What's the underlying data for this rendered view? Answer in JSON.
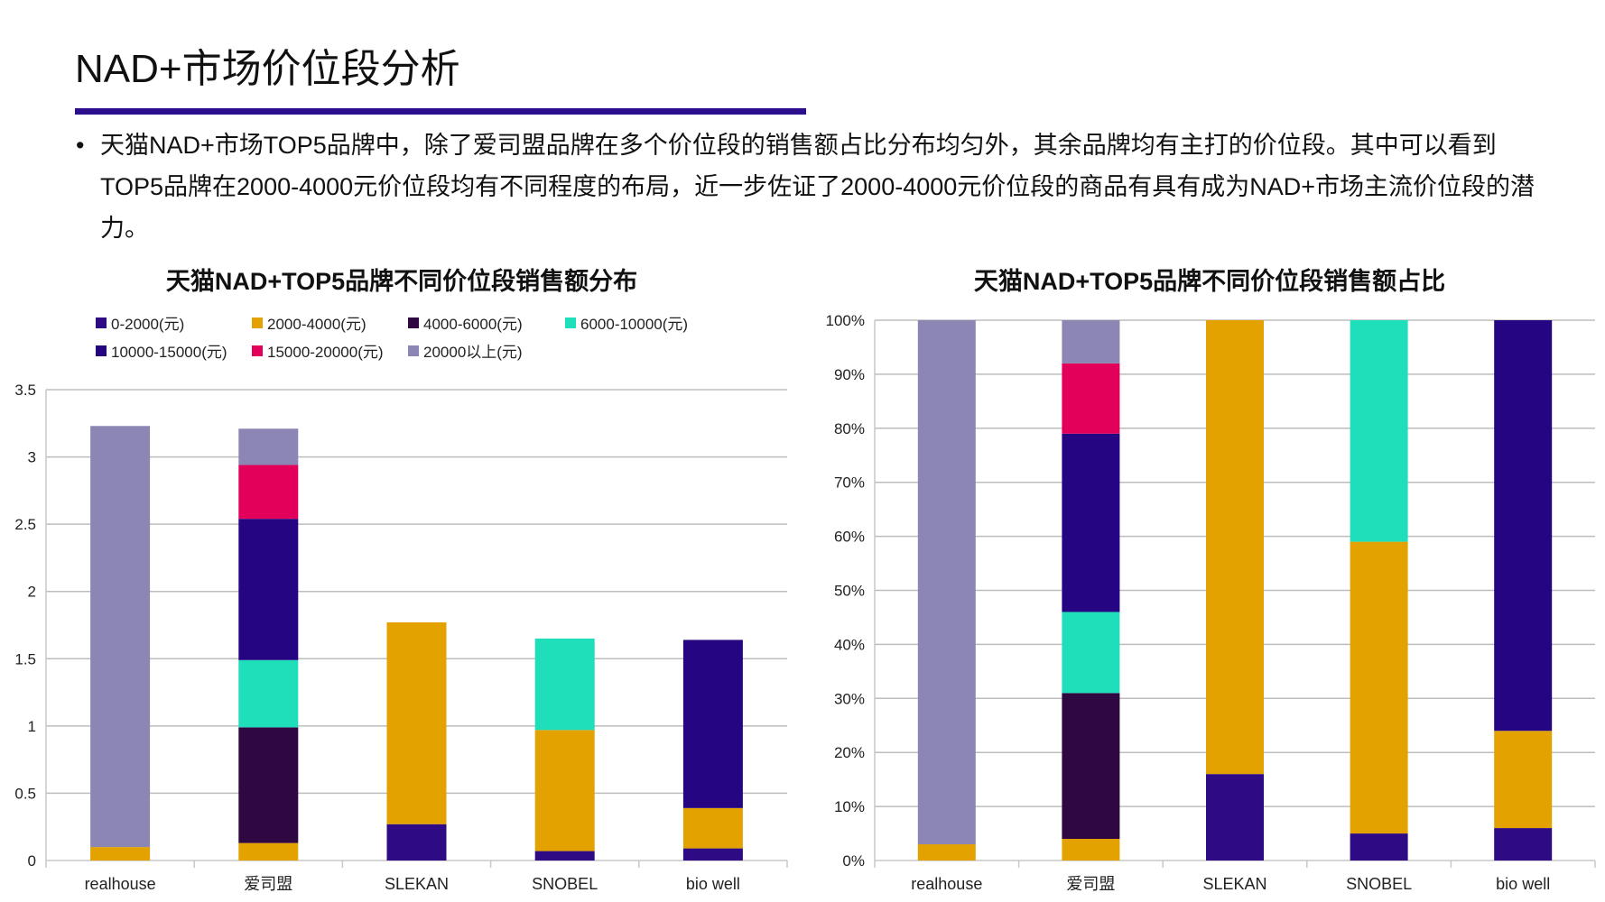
{
  "page": {
    "title": "NAD+市场价位段分析",
    "accent_color": "#2c0f8f",
    "bullet_icon": "bullet-dot",
    "bullet_text": "天猫NAD+市场TOP5品牌中，除了爱司盟品牌在多个价位段的销售额占比分布均匀外，其余品牌均有主打的价位段。其中可以看到TOP5品牌在2000-4000元价位段均有不同程度的布局，近一步佐证了2000-4000元价位段的商品有具有成为NAD+市场主流价位段的潜力。"
  },
  "chart_data": [
    {
      "type": "bar",
      "stacked": true,
      "title": "天猫NAD+TOP5品牌不同价位段销售额分布",
      "categories": [
        "realhouse",
        "爱司盟",
        "SLEKAN",
        "SNOBEL",
        "bio well"
      ],
      "ylim": [
        0,
        3.5
      ],
      "yticks": [
        "0",
        "0.5",
        "1",
        "1.5",
        "2",
        "2.5",
        "3",
        "3.5"
      ],
      "grid": true,
      "legend": "top",
      "series": [
        {
          "name": "0-2000(元)",
          "color": "#2e0a85",
          "values": [
            0,
            0,
            0.27,
            0.07,
            0.09
          ]
        },
        {
          "name": "2000-4000(元)",
          "color": "#e3a200",
          "values": [
            0.1,
            0.13,
            1.5,
            0.9,
            0.3
          ]
        },
        {
          "name": "4000-6000(元)",
          "color": "#2f0842",
          "values": [
            0,
            0.86,
            0,
            0,
            0
          ]
        },
        {
          "name": "6000-10000(元)",
          "color": "#1fdfbb",
          "values": [
            0,
            0.5,
            0,
            0.68,
            0
          ]
        },
        {
          "name": "10000-15000(元)",
          "color": "#260582",
          "values": [
            0,
            1.05,
            0,
            0,
            1.25
          ]
        },
        {
          "name": "15000-20000(元)",
          "color": "#e2005a",
          "values": [
            0,
            0.4,
            0,
            0,
            0
          ]
        },
        {
          "name": "20000以上(元)",
          "color": "#8c86b4",
          "values": [
            3.13,
            0.27,
            0,
            0,
            0
          ]
        }
      ]
    },
    {
      "type": "bar",
      "stacked": true,
      "percent": true,
      "title": "天猫NAD+TOP5品牌不同价位段销售额占比",
      "categories": [
        "realhouse",
        "爱司盟",
        "SLEKAN",
        "SNOBEL",
        "bio well"
      ],
      "ylim": [
        0,
        100
      ],
      "yticks": [
        "0%",
        "10%",
        "20%",
        "30%",
        "40%",
        "50%",
        "60%",
        "70%",
        "80%",
        "90%",
        "100%"
      ],
      "grid": true,
      "series": [
        {
          "name": "0-2000(元)",
          "color": "#2e0a85",
          "values": [
            0,
            0,
            16,
            5,
            6
          ]
        },
        {
          "name": "2000-4000(元)",
          "color": "#e3a200",
          "values": [
            3,
            4,
            84,
            54,
            18
          ]
        },
        {
          "name": "4000-6000(元)",
          "color": "#2f0842",
          "values": [
            0,
            27,
            0,
            0,
            0
          ]
        },
        {
          "name": "6000-10000(元)",
          "color": "#1fdfbb",
          "values": [
            0,
            15,
            0,
            41,
            0
          ]
        },
        {
          "name": "10000-15000(元)",
          "color": "#260582",
          "values": [
            0,
            33,
            0,
            0,
            76
          ]
        },
        {
          "name": "15000-20000(元)",
          "color": "#e2005a",
          "values": [
            0,
            13,
            0,
            0,
            0
          ]
        },
        {
          "name": "20000以上(元)",
          "color": "#8c86b4",
          "values": [
            97,
            8,
            0,
            0,
            0
          ]
        }
      ]
    }
  ]
}
